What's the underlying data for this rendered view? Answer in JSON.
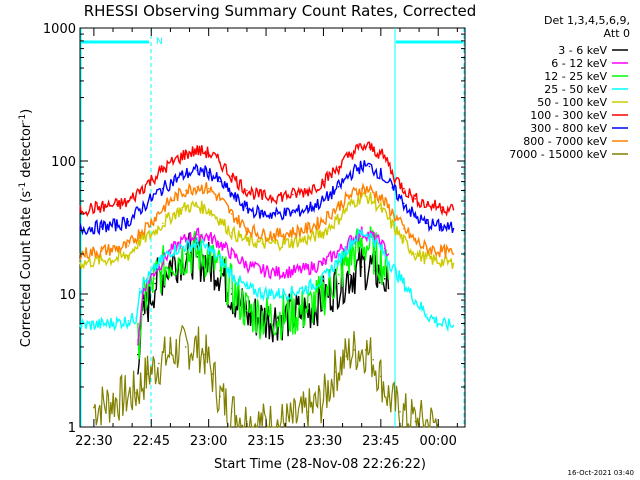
{
  "chart_data": {
    "type": "line",
    "title": "RHESSI Observing Summary Count Rates, Corrected",
    "xlabel": "Start Time (28-Nov-08 22:26:22)",
    "ylabel": "Corrected Count Rate (s",
    "ylabel_sup1": "-1",
    "ylabel_mid": " detector",
    "ylabel_sup2": "-1",
    "ylabel_end": ")",
    "y_scale": "log",
    "ylim": [
      1,
      1000
    ],
    "xlim_min": [
      -3.63,
      97.0
    ],
    "x_ticks": [
      {
        "t": 0,
        "label": "22:30"
      },
      {
        "t": 15,
        "label": "22:45"
      },
      {
        "t": 30,
        "label": "23:00"
      },
      {
        "t": 45,
        "label": "23:15"
      },
      {
        "t": 60,
        "label": "23:30"
      },
      {
        "t": 75,
        "label": "23:45"
      },
      {
        "t": 90,
        "label": "00:00"
      }
    ],
    "y_ticks": [
      {
        "v": 1,
        "label": "1"
      },
      {
        "v": 10,
        "label": "10"
      },
      {
        "v": 100,
        "label": "100"
      },
      {
        "v": 1000,
        "label": "1000"
      }
    ],
    "legend_position": "right",
    "legend_header_line1": "Det 1,3,4,5,6,9,",
    "legend_header_line2": "Att 0",
    "series": [
      {
        "name": "3 - 6 keV",
        "color": "#000000",
        "points": [
          [
            11.5,
            3.5
          ],
          [
            13,
            7
          ],
          [
            16,
            12
          ],
          [
            20,
            17
          ],
          [
            24,
            20
          ],
          [
            27,
            19
          ],
          [
            30,
            17
          ],
          [
            33,
            15
          ],
          [
            36,
            10
          ],
          [
            40,
            7.2
          ],
          [
            44,
            6.5
          ],
          [
            48,
            6.6
          ],
          [
            52,
            6.9
          ],
          [
            56,
            7.5
          ],
          [
            60,
            9.5
          ],
          [
            64,
            12
          ],
          [
            67,
            14
          ],
          [
            70,
            16
          ],
          [
            72,
            16
          ],
          [
            73.5,
            15
          ],
          [
            75,
            14
          ],
          [
            76,
            13
          ],
          [
            77,
            11
          ]
        ]
      },
      {
        "name": "6 - 12 keV",
        "color": "#ff00ff",
        "points": [
          [
            11.5,
            4.5
          ],
          [
            13,
            11
          ],
          [
            16,
            15
          ],
          [
            20,
            21
          ],
          [
            24,
            26
          ],
          [
            27,
            28
          ],
          [
            30,
            27
          ],
          [
            33,
            24
          ],
          [
            36,
            20
          ],
          [
            40,
            16.5
          ],
          [
            44,
            15
          ],
          [
            48,
            14.5
          ],
          [
            52,
            14.8
          ],
          [
            56,
            15.5
          ],
          [
            60,
            17
          ],
          [
            64,
            21
          ],
          [
            67,
            25
          ],
          [
            70,
            29
          ],
          [
            72,
            28
          ],
          [
            73.5,
            26
          ],
          [
            75,
            24
          ],
          [
            76,
            22
          ],
          [
            77,
            20
          ]
        ]
      },
      {
        "name": "12 - 25 keV",
        "color": "#00ff00",
        "points": [
          [
            11.5,
            4.2
          ],
          [
            13,
            9
          ],
          [
            16,
            13
          ],
          [
            20,
            18
          ],
          [
            24,
            20
          ],
          [
            27,
            20.5
          ],
          [
            30,
            19
          ],
          [
            33,
            15
          ],
          [
            36,
            11
          ],
          [
            40,
            7.5
          ],
          [
            44,
            6.8
          ],
          [
            48,
            6.8
          ],
          [
            52,
            7
          ],
          [
            56,
            7.8
          ],
          [
            60,
            10
          ],
          [
            64,
            14
          ],
          [
            67,
            19
          ],
          [
            70,
            24
          ],
          [
            72,
            23
          ],
          [
            73.5,
            20
          ],
          [
            75,
            18
          ],
          [
            76,
            16
          ],
          [
            77,
            13
          ]
        ]
      },
      {
        "name": "25 - 50 keV",
        "color": "#00ffff",
        "points": [
          [
            -3.6,
            5.8
          ],
          [
            2,
            5.9
          ],
          [
            6,
            6.1
          ],
          [
            9,
            6.3
          ],
          [
            11,
            6.6
          ],
          [
            12,
            11
          ],
          [
            14,
            13
          ],
          [
            17,
            17
          ],
          [
            20,
            21
          ],
          [
            24,
            23
          ],
          [
            27,
            23.5
          ],
          [
            30,
            22
          ],
          [
            33,
            18
          ],
          [
            36,
            14
          ],
          [
            40,
            11
          ],
          [
            44,
            10.2
          ],
          [
            48,
            10
          ],
          [
            52,
            10.3
          ],
          [
            56,
            11.2
          ],
          [
            60,
            13
          ],
          [
            64,
            18
          ],
          [
            67,
            24
          ],
          [
            70,
            29
          ],
          [
            72,
            28
          ],
          [
            73.5,
            25
          ],
          [
            75,
            22
          ],
          [
            78,
            16
          ],
          [
            81,
            12
          ],
          [
            84,
            9
          ],
          [
            87,
            7
          ],
          [
            91,
            5.9
          ],
          [
            94,
            5.8
          ]
        ]
      },
      {
        "name": "50 - 100 keV",
        "color": "#cccc00",
        "points": [
          [
            -3.6,
            17
          ],
          [
            2,
            18
          ],
          [
            6,
            18.5
          ],
          [
            9,
            19.5
          ],
          [
            12,
            25
          ],
          [
            15,
            28
          ],
          [
            18,
            34
          ],
          [
            21,
            40
          ],
          [
            24,
            45
          ],
          [
            27,
            46
          ],
          [
            30,
            43
          ],
          [
            33,
            36
          ],
          [
            36,
            29
          ],
          [
            40,
            25
          ],
          [
            44,
            24
          ],
          [
            48,
            24
          ],
          [
            52,
            24.5
          ],
          [
            56,
            26
          ],
          [
            60,
            29
          ],
          [
            64,
            37
          ],
          [
            67,
            47
          ],
          [
            70,
            54
          ],
          [
            72,
            53
          ],
          [
            75,
            44
          ],
          [
            78,
            33
          ],
          [
            81,
            25
          ],
          [
            84,
            20
          ],
          [
            87,
            18.5
          ],
          [
            91,
            17.5
          ],
          [
            94,
            17
          ]
        ]
      },
      {
        "name": "100 - 300 keV",
        "color": "#ff0000",
        "points": [
          [
            -3.6,
            43
          ],
          [
            2,
            45
          ],
          [
            6,
            47
          ],
          [
            9,
            49
          ],
          [
            12,
            60
          ],
          [
            15,
            72
          ],
          [
            18,
            86
          ],
          [
            21,
            100
          ],
          [
            24,
            113
          ],
          [
            27,
            120
          ],
          [
            30,
            115
          ],
          [
            33,
            98
          ],
          [
            36,
            77
          ],
          [
            40,
            60
          ],
          [
            44,
            54
          ],
          [
            48,
            54
          ],
          [
            52,
            56
          ],
          [
            56,
            60
          ],
          [
            60,
            70
          ],
          [
            64,
            90
          ],
          [
            67,
            112
          ],
          [
            70,
            128
          ],
          [
            72,
            127
          ],
          [
            75,
            113
          ],
          [
            77,
            97
          ],
          [
            78,
            80
          ],
          [
            81,
            62
          ],
          [
            84,
            52
          ],
          [
            87,
            47
          ],
          [
            91,
            45
          ],
          [
            94,
            43
          ]
        ]
      },
      {
        "name": "300 - 800 keV",
        "color": "#0000ff",
        "points": [
          [
            -3.6,
            31
          ],
          [
            2,
            32
          ],
          [
            6,
            33
          ],
          [
            9,
            35
          ],
          [
            12,
            43
          ],
          [
            15,
            52
          ],
          [
            18,
            62
          ],
          [
            21,
            72
          ],
          [
            24,
            80
          ],
          [
            27,
            85
          ],
          [
            30,
            82
          ],
          [
            33,
            70
          ],
          [
            36,
            56
          ],
          [
            40,
            44
          ],
          [
            44,
            40
          ],
          [
            48,
            40
          ],
          [
            52,
            41
          ],
          [
            56,
            44
          ],
          [
            60,
            50
          ],
          [
            64,
            64
          ],
          [
            67,
            80
          ],
          [
            70,
            92
          ],
          [
            72,
            91
          ],
          [
            75,
            80
          ],
          [
            78,
            63
          ],
          [
            81,
            48
          ],
          [
            84,
            38
          ],
          [
            87,
            34
          ],
          [
            91,
            32
          ],
          [
            94,
            31
          ]
        ]
      },
      {
        "name": "800 - 7000 keV",
        "color": "#ff8000",
        "points": [
          [
            -3.6,
            20
          ],
          [
            2,
            21
          ],
          [
            6,
            22
          ],
          [
            9,
            23
          ],
          [
            12,
            29
          ],
          [
            15,
            35
          ],
          [
            18,
            44
          ],
          [
            21,
            53
          ],
          [
            24,
            60
          ],
          [
            27,
            64
          ],
          [
            30,
            62
          ],
          [
            33,
            52
          ],
          [
            36,
            40
          ],
          [
            40,
            31
          ],
          [
            44,
            28
          ],
          [
            48,
            28
          ],
          [
            52,
            29
          ],
          [
            56,
            31
          ],
          [
            60,
            36
          ],
          [
            64,
            46
          ],
          [
            67,
            55
          ],
          [
            70,
            62
          ],
          [
            72,
            61
          ],
          [
            75,
            53
          ],
          [
            78,
            41
          ],
          [
            81,
            31
          ],
          [
            84,
            25
          ],
          [
            87,
            22
          ],
          [
            91,
            21
          ],
          [
            94,
            20
          ]
        ]
      },
      {
        "name": "7000 - 15000 keV",
        "color": "#808000",
        "points": [
          [
            0,
            1.4
          ],
          [
            6,
            1.6
          ],
          [
            11,
            1.8
          ],
          [
            14,
            2.5
          ],
          [
            17,
            3
          ],
          [
            20,
            3.6
          ],
          [
            24,
            4
          ],
          [
            27,
            4
          ],
          [
            29,
            3.5
          ],
          [
            31,
            2.5
          ],
          [
            33,
            1.7
          ],
          [
            36,
            1.3
          ],
          [
            40,
            1.1
          ],
          [
            44,
            1.05
          ],
          [
            48,
            1.05
          ],
          [
            52,
            1.1
          ],
          [
            56,
            1.3
          ],
          [
            60,
            1.6
          ],
          [
            63,
            2.6
          ],
          [
            66,
            3.4
          ],
          [
            68,
            3.8
          ],
          [
            71,
            3.8
          ],
          [
            73,
            3.2
          ],
          [
            75,
            2.4
          ],
          [
            77,
            1.7
          ],
          [
            80,
            1.3
          ],
          [
            84,
            1.1
          ],
          [
            90,
            1.05
          ]
        ]
      }
    ]
  },
  "timestamp": "16-Oct-2021 03:40",
  "annotations": {
    "night_label": "N"
  }
}
